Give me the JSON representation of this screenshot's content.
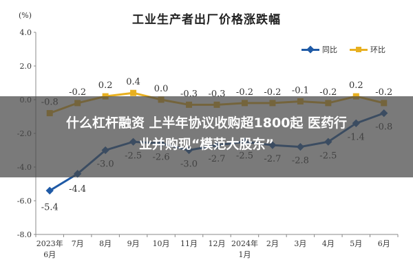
{
  "chart_data": {
    "type": "line",
    "title": "工业生产者出厂价格涨跌幅",
    "ylabel": "(%)",
    "ylim": [
      -8.0,
      4.0
    ],
    "yticks": [
      "4.0",
      "2.0",
      "0.0",
      "-2.0",
      "-4.0",
      "-6.0",
      "-8.0"
    ],
    "categories": [
      {
        "l1": "2023年",
        "l2": "6月"
      },
      {
        "l1": "7月",
        "l2": ""
      },
      {
        "l1": "8月",
        "l2": ""
      },
      {
        "l1": "9月",
        "l2": ""
      },
      {
        "l1": "10月",
        "l2": ""
      },
      {
        "l1": "11月",
        "l2": ""
      },
      {
        "l1": "12月",
        "l2": ""
      },
      {
        "l1": "2024年",
        "l2": "1月"
      },
      {
        "l1": "2月",
        "l2": ""
      },
      {
        "l1": "3月",
        "l2": ""
      },
      {
        "l1": "4月",
        "l2": ""
      },
      {
        "l1": "5月",
        "l2": ""
      },
      {
        "l1": "6月",
        "l2": ""
      }
    ],
    "series": [
      {
        "name": "同比",
        "color": "#1f5aa6",
        "marker": "diamond",
        "values": [
          -5.4,
          -4.4,
          -3.0,
          -2.5,
          -2.6,
          -3.0,
          -2.7,
          -2.5,
          -2.7,
          -2.8,
          -2.5,
          -1.4,
          -0.8
        ]
      },
      {
        "name": "环比",
        "color": "#e8b020",
        "marker": "square",
        "values": [
          -0.8,
          -0.2,
          0.2,
          0.4,
          0.0,
          -0.3,
          -0.3,
          -0.2,
          -0.2,
          -0.1,
          -0.2,
          0.2,
          -0.2
        ]
      }
    ],
    "legend_position": "top-right",
    "grid": false
  },
  "overlay": {
    "line1": "什么杠杆融资 上半年协议收购超1800起 医药行",
    "line2": "业并购现“模范大股东”"
  }
}
